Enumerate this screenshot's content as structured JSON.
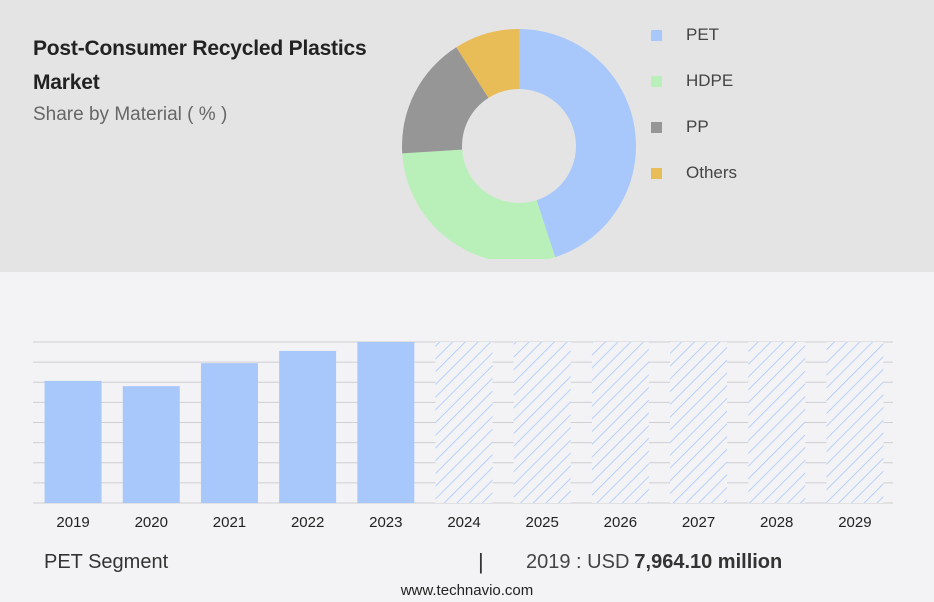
{
  "header": {
    "title": "Post-Consumer Recycled Plastics Market",
    "subtitle": "Share by Material ( % )"
  },
  "chart_data": [
    {
      "type": "pie",
      "title": "Post-Consumer Recycled Plastics Market",
      "subtitle": "Share by Material ( % )",
      "donut": true,
      "legend_position": "right",
      "slices": [
        {
          "label": "PET",
          "value": 45,
          "color": "#a8c8fc"
        },
        {
          "label": "HDPE",
          "value": 29,
          "color": "#b9f0b9"
        },
        {
          "label": "PP",
          "value": 17,
          "color": "#969696"
        },
        {
          "label": "Others",
          "value": 9,
          "color": "#e8bc56"
        }
      ]
    },
    {
      "type": "bar",
      "categories": [
        "2019",
        "2020",
        "2021",
        "2022",
        "2023",
        "2024",
        "2025",
        "2026",
        "2027",
        "2028",
        "2029"
      ],
      "values": [
        7964.1,
        7620,
        9120,
        9920,
        10500,
        10500,
        10500,
        10500,
        10500,
        10500,
        10500
      ],
      "forecast_from": "2024",
      "ylim": [
        0,
        10500
      ],
      "grid": true,
      "bar_color": "#a8c8fc",
      "forecast_pattern": "diagonal-hatch"
    }
  ],
  "footer": {
    "segment": "PET Segment",
    "separator": "|",
    "value_prefix": "2019 : USD",
    "value": "7,964.10 million",
    "url": "www.technavio.com"
  }
}
